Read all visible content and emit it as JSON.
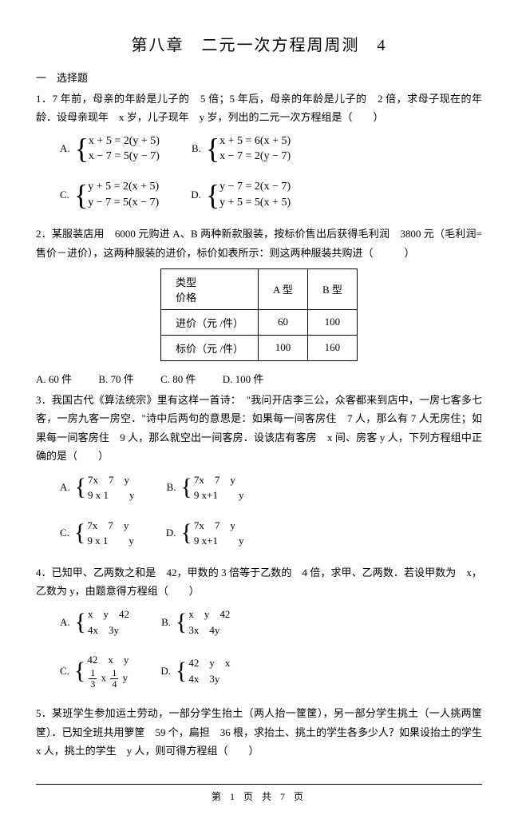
{
  "title": "第八章　二元一次方程周周测　4",
  "section1": "一　选择题",
  "q1": {
    "text": "1．7 年前，母亲的年龄是儿子的　5 倍；5 年后，母亲的年龄是儿子的　2 倍，求母子现在的年龄．设母亲现年　x 岁，儿子现年　y 岁，列出的二元一次方程组是（　　）",
    "A1": "x + 5 = 2(y + 5)",
    "A2": "x − 7 = 5(y − 7)",
    "B1": "x + 5 = 6(x + 5)",
    "B2": "x − 7 = 2(y − 7)",
    "C1": "y + 5 = 2(x + 5)",
    "C2": "y − 7 = 5(x − 7)",
    "D1": "y − 7 = 2(x − 7)",
    "D2": "y + 5 = 5(x + 5)"
  },
  "q2": {
    "text": "2．某服装店用　6000 元购进 A、B 两种新款服装，按标价售出后获得毛利润　3800 元（毛利润=售价－进价），这两种服装的进价，标价如表所示：则这两种服装共购进（　　　）",
    "table": {
      "h1": "类型",
      "h1b": "价格",
      "h2": "A 型",
      "h3": "B 型",
      "r1c1": "进价（元 /件）",
      "r1c2": "60",
      "r1c3": "100",
      "r2c1": "标价（元 /件）",
      "r2c2": "100",
      "r2c3": "160"
    },
    "optA": "A. 60 件",
    "optB": "B. 70 件",
    "optC": "C. 80 件",
    "optD": "D. 100 件"
  },
  "q3": {
    "text": "3．我国古代《算法统宗》里有这样一首诗：　\"我问开店李三公，众客都来到店中，一房七客多七客，一房九客一房空．\"诗中后两句的意思是：如果每一间客房住　7 人，那么有 7 人无房住；如果每一间客房住　9 人，那么就空出一间客房．设该店有客房　x 间、房客 y 人，下列方程组中正确的是（　　）",
    "A1": "7x　7　y",
    "A2": "9  x  1　　y",
    "B1": "7x　7　y",
    "B2": "9  x+1　　y",
    "C1": "7x　7　y",
    "C2": "9  x  1　　y",
    "D1": "7x　7　y",
    "D2": "9  x+1　　y"
  },
  "q4": {
    "text": "4．已知甲、乙两数之和是　42，甲数的 3 倍等于乙数的　4 倍，求甲、乙两数．若设甲数为　x，乙数为 y，由题意得方程组（　　）",
    "A1": "x　y　42",
    "A2": "4x　3y",
    "B1": "x　y　42",
    "B2": "3x　4y",
    "C1": "42　x　y",
    "C2n1": "1",
    "C2d1": "3",
    "C2m": "x",
    "C2n2": "1",
    "C2d2": "4",
    "C2m2": "y",
    "D1": "42　y　x",
    "D2": "4x　3y"
  },
  "q5": {
    "text": "5．某班学生参加运土劳动，一部分学生抬土（两人抬一筐筐），另一部分学生挑土（一人挑两筐筐）．已知全班共用箩筐　59 个，扁担　36 根，求抬土、挑土的学生各多少人？如果设抬土的学生　x 人，挑土的学生　y 人，则可得方程组（　　）"
  },
  "footer": "第 1 页 共 7 页",
  "labels": {
    "A": "A.",
    "B": "B.",
    "C": "C.",
    "D": "D."
  }
}
